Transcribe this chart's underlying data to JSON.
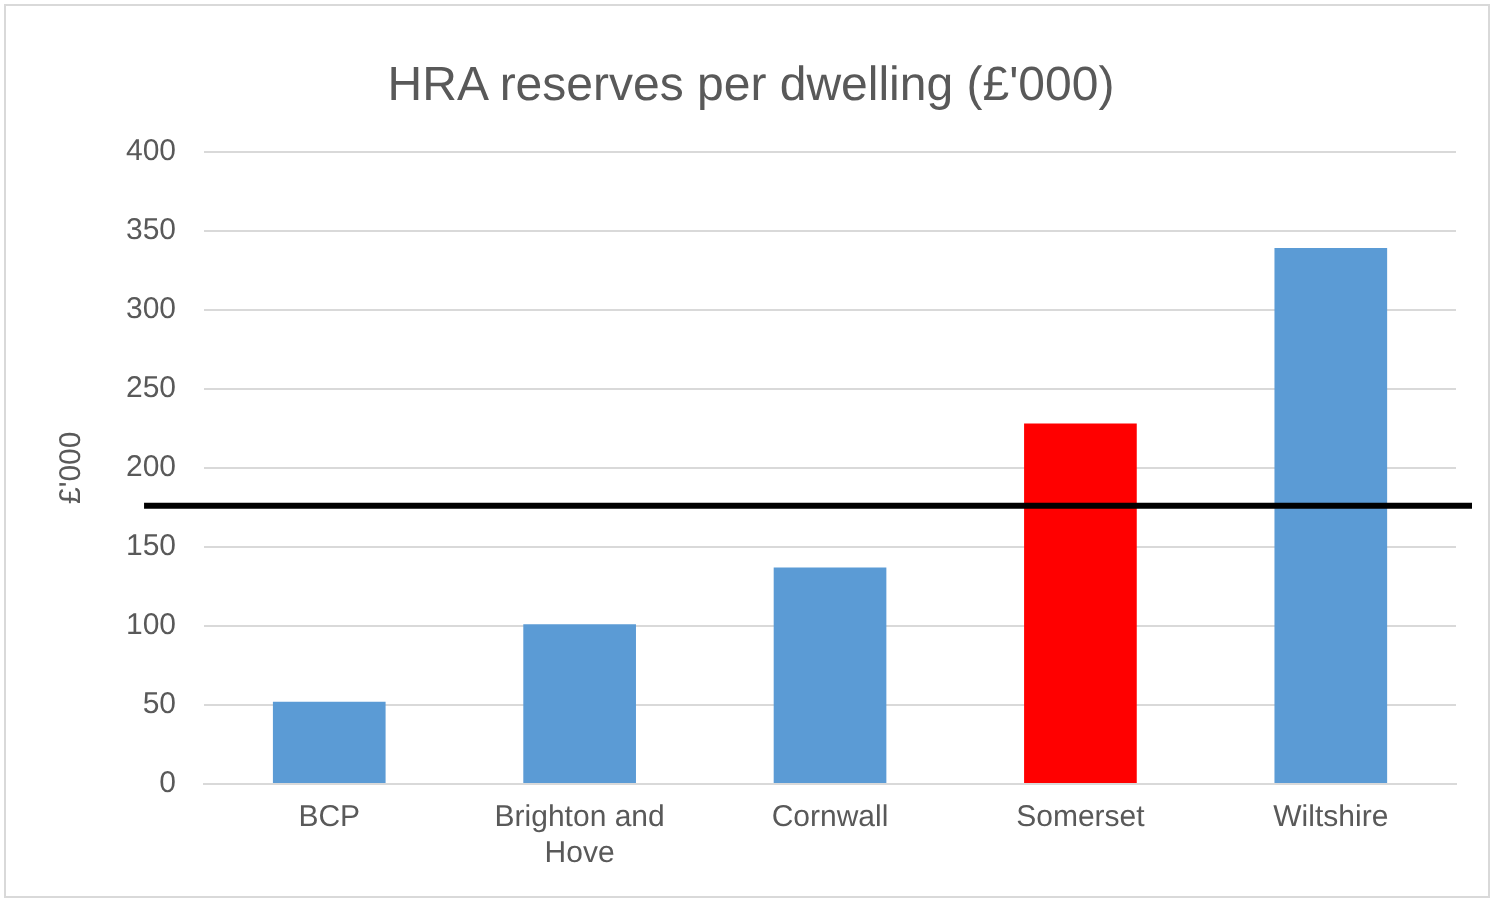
{
  "chart_data": {
    "type": "bar",
    "title": "HRA reserves per dwelling (£'000)",
    "ylabel": "£'000",
    "categories": [
      "BCP",
      "Brighton and Hove",
      "Cornwall",
      "Somerset",
      "Wiltshire"
    ],
    "values": [
      52,
      101,
      137,
      228,
      339
    ],
    "colors": [
      "#5b9bd5",
      "#5b9bd5",
      "#5b9bd5",
      "#ff0000",
      "#5b9bd5"
    ],
    "ylim": [
      0,
      400
    ],
    "yticks": [
      0,
      50,
      100,
      150,
      200,
      250,
      300,
      350,
      400
    ],
    "grid": "y",
    "legend": false,
    "ref_lines": [
      {
        "axis": "y",
        "value": 176,
        "color": "#000000"
      }
    ]
  }
}
